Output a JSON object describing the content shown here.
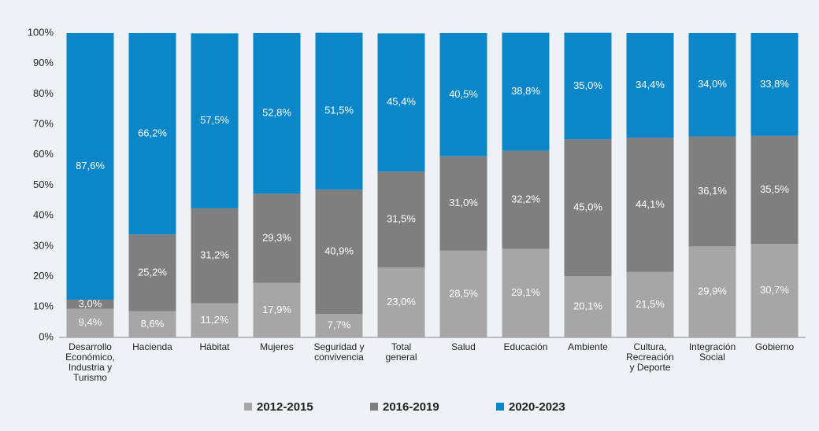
{
  "chart_data": {
    "type": "stacked_bar",
    "categories": [
      "Desarrollo\nEconómico,\nIndustria y\nTurismo",
      "Hacienda",
      "Hábitat",
      "Mujeres",
      "Seguridad y\nconvivencia",
      "Total\ngeneral",
      "Salud",
      "Educación",
      "Ambiente",
      "Cultura,\nRecreación\ny Deporte",
      "Integración\nSocial",
      "Gobierno"
    ],
    "series": [
      {
        "name": "2012-2015",
        "color": "#a6a6a6",
        "values": [
          9.4,
          8.6,
          11.2,
          17.9,
          7.7,
          23.0,
          28.5,
          29.1,
          20.1,
          21.5,
          29.9,
          30.7
        ],
        "value_labels": [
          "9,4%",
          "8,6%",
          "11,2%",
          "17,9%",
          "7,7%",
          "23,0%",
          "28,5%",
          "29,1%",
          "20,1%",
          "21,5%",
          "29,9%",
          "30,7%"
        ]
      },
      {
        "name": "2016-2019",
        "color": "#7f7f7f",
        "values": [
          3.0,
          25.2,
          31.2,
          29.3,
          40.9,
          31.5,
          31.0,
          32.2,
          45.0,
          44.1,
          36.1,
          35.5
        ],
        "value_labels": [
          "3,0%",
          "25,2%",
          "31,2%",
          "29,3%",
          "40,9%",
          "31,5%",
          "31,0%",
          "32,2%",
          "45,0%",
          "44,1%",
          "36,1%",
          "35,5%"
        ]
      },
      {
        "name": "2020-2023",
        "color": "#0b86c8",
        "values": [
          87.6,
          66.2,
          57.5,
          52.8,
          51.5,
          45.4,
          40.5,
          38.8,
          35.0,
          34.4,
          34.0,
          33.8
        ],
        "value_labels": [
          "87,6%",
          "66,2%",
          "57,5%",
          "52,8%",
          "51,5%",
          "45,4%",
          "40,5%",
          "38,8%",
          "35,0%",
          "34,4%",
          "34,0%",
          "33,8%"
        ]
      }
    ],
    "ylim": [
      0,
      100
    ],
    "yticks": [
      {
        "value": 0,
        "label": "0%"
      },
      {
        "value": 10,
        "label": "10%"
      },
      {
        "value": 20,
        "label": "20%"
      },
      {
        "value": 30,
        "label": "30%"
      },
      {
        "value": 40,
        "label": "40%"
      },
      {
        "value": 50,
        "label": "50%"
      },
      {
        "value": 60,
        "label": "60%"
      },
      {
        "value": 70,
        "label": "70%"
      },
      {
        "value": 80,
        "label": "80%"
      },
      {
        "value": 90,
        "label": "90%"
      },
      {
        "value": 100,
        "label": "100%"
      }
    ],
    "legend": "bottom"
  }
}
